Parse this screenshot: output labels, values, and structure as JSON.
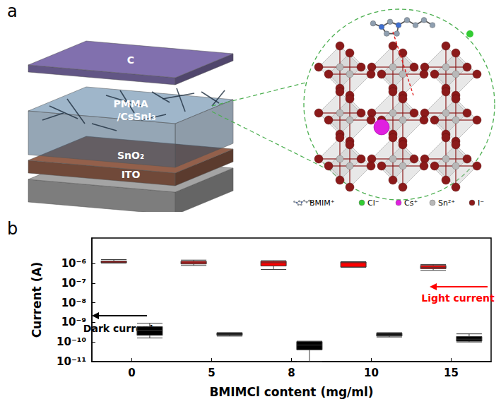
{
  "diagram": {
    "panel_label": "a",
    "layers": [
      {
        "label": [
          "C"
        ],
        "color": "#7b6ba6"
      },
      {
        "label": [
          "PMMA",
          "/CsSnI₃"
        ],
        "color": "#4d7496"
      },
      {
        "label": [
          "SnO₂"
        ],
        "color": "#8c5b47"
      },
      {
        "label": [
          "ITO"
        ],
        "color": "#9c9c9c"
      }
    ],
    "inset_legend": [
      {
        "label": "BMIM⁺",
        "marker": "molecule",
        "color": "#8f9fb0"
      },
      {
        "label": "Cl⁻",
        "marker": "circle",
        "color": "#33cc33"
      },
      {
        "label": "Cs⁺",
        "marker": "circle",
        "color": "#e020e0"
      },
      {
        "label": "Sn²⁺",
        "marker": "circle",
        "color": "#b8b8b8"
      },
      {
        "label": "I⁻",
        "marker": "circle",
        "color": "#8b1a1a"
      }
    ]
  },
  "chart_data": {
    "panel_label": "b",
    "type": "boxplot",
    "x_label": "BMIMCl content (mg/ml)",
    "y_label": "Current (A)",
    "categories": [
      "0",
      "5",
      "8",
      "10",
      "15"
    ],
    "series": [
      {
        "name": "Light current",
        "color": "#ff0000",
        "values": [
          [
            1.05e-06,
            1.1e-06,
            1.2e-06,
            1.35e-06,
            1.6e-06
          ],
          [
            8e-07,
            9.5e-07,
            1.1e-06,
            1.3e-06,
            1.5e-06
          ],
          [
            5e-07,
            7.5e-07,
            1.1e-06,
            1.3e-06,
            1.4e-06
          ],
          [
            6.5e-07,
            6.6e-07,
            1.1e-06,
            1.2e-06,
            1.25e-06
          ],
          [
            4.5e-07,
            5.5e-07,
            6.5e-07,
            8e-07,
            9e-07
          ]
        ]
      },
      {
        "name": "Dark current",
        "color": "#000000",
        "values": [
          [
            1.6e-10,
            2.2e-10,
            4e-10,
            6e-10,
            9e-10
          ],
          [
            2e-10,
            2.2e-10,
            2.5e-10,
            2.9e-10,
            3e-10
          ],
          [
            1e-11,
            4e-11,
            7e-11,
            1.05e-10,
            1.1e-10
          ],
          [
            1.8e-10,
            2e-10,
            2.3e-10,
            2.8e-10,
            3e-10
          ],
          [
            1e-10,
            1.1e-10,
            1.4e-10,
            1.9e-10,
            2.6e-10
          ]
        ]
      }
    ],
    "log": "y",
    "ylim": [
      1e-11,
      2e-05
    ],
    "yticks": [
      {
        "value": 1e-11,
        "label": "10⁻¹¹"
      },
      {
        "value": 1e-10,
        "label": "10⁻¹⁰"
      },
      {
        "value": 1e-09,
        "label": "10⁻⁹"
      },
      {
        "value": 1e-08,
        "label": "10⁻⁸"
      },
      {
        "value": 1e-07,
        "label": "10⁻⁷"
      },
      {
        "value": 1e-06,
        "label": "10⁻⁶"
      }
    ],
    "grid": false
  }
}
